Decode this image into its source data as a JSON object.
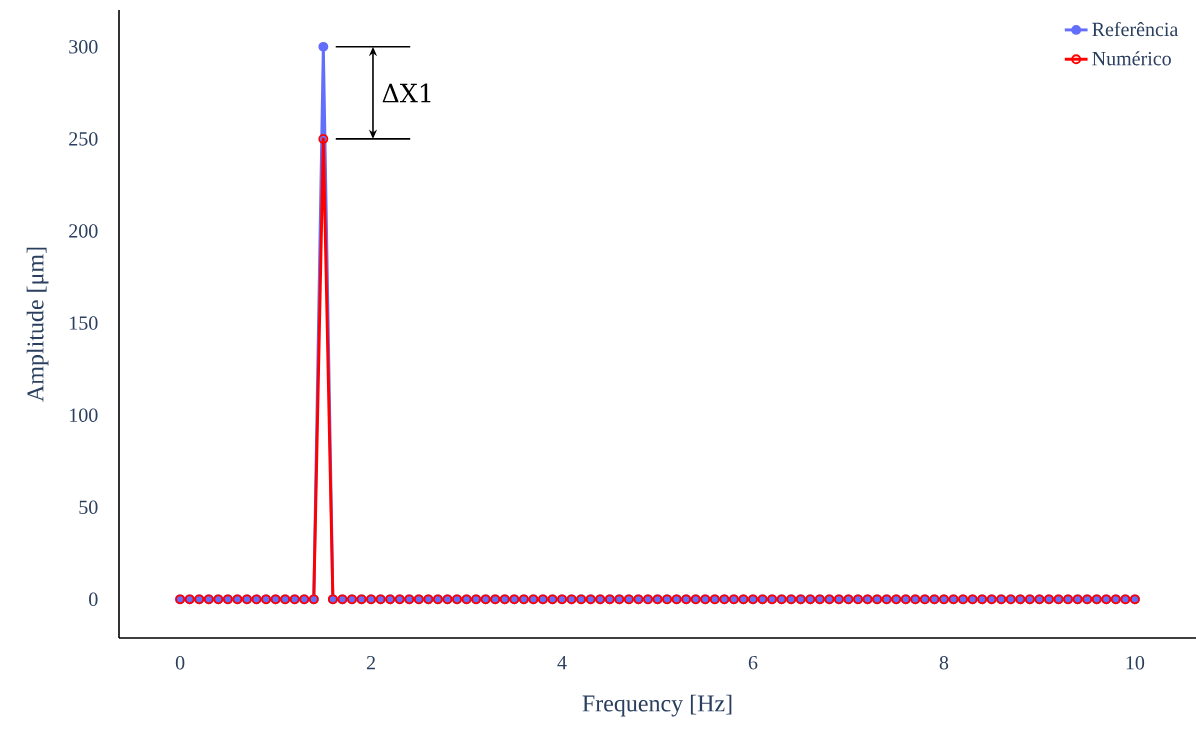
{
  "chart_data": {
    "type": "line",
    "xlabel": "Frequency [Hz]",
    "ylabel": "Amplitude [μm]",
    "x": [
      0,
      0.1,
      0.2,
      0.3,
      0.4,
      0.5,
      0.6,
      0.7,
      0.8,
      0.9,
      1,
      1.1,
      1.2,
      1.3,
      1.4,
      1.5,
      1.6,
      1.7,
      1.8,
      1.9,
      2,
      2.1,
      2.2,
      2.3,
      2.4,
      2.5,
      2.6,
      2.7,
      2.8,
      2.9,
      3,
      3.1,
      3.2,
      3.3,
      3.4,
      3.5,
      3.6,
      3.7,
      3.8,
      3.9,
      4,
      4.1,
      4.2,
      4.3,
      4.4,
      4.5,
      4.6,
      4.7,
      4.8,
      4.9,
      5,
      5.1,
      5.2,
      5.3,
      5.4,
      5.5,
      5.6,
      5.7,
      5.8,
      5.9,
      6,
      6.1,
      6.2,
      6.3,
      6.4,
      6.5,
      6.6,
      6.7,
      6.8,
      6.9,
      7,
      7.1,
      7.2,
      7.3,
      7.4,
      7.5,
      7.6,
      7.7,
      7.8,
      7.9,
      8,
      8.1,
      8.2,
      8.3,
      8.4,
      8.5,
      8.6,
      8.7,
      8.8,
      8.9,
      9,
      9.1,
      9.2,
      9.3,
      9.4,
      9.5,
      9.6,
      9.7,
      9.8,
      9.9,
      10
    ],
    "series": [
      {
        "name": "Referência",
        "color": "#636efa",
        "values": [
          0,
          0,
          0,
          0,
          0,
          0,
          0,
          0,
          0,
          0,
          0,
          0,
          0,
          0,
          0,
          300,
          0,
          0,
          0,
          0,
          0,
          0,
          0,
          0,
          0,
          0,
          0,
          0,
          0,
          0,
          0,
          0,
          0,
          0,
          0,
          0,
          0,
          0,
          0,
          0,
          0,
          0,
          0,
          0,
          0,
          0,
          0,
          0,
          0,
          0,
          0,
          0,
          0,
          0,
          0,
          0,
          0,
          0,
          0,
          0,
          0,
          0,
          0,
          0,
          0,
          0,
          0,
          0,
          0,
          0,
          0,
          0,
          0,
          0,
          0,
          0,
          0,
          0,
          0,
          0,
          0,
          0,
          0,
          0,
          0,
          0,
          0,
          0,
          0,
          0,
          0,
          0,
          0,
          0,
          0,
          0,
          0,
          0,
          0,
          0,
          0
        ]
      },
      {
        "name": "Numérico",
        "color": "#ff0000",
        "values": [
          0,
          0,
          0,
          0,
          0,
          0,
          0,
          0,
          0,
          0,
          0,
          0,
          0,
          0,
          0,
          250,
          0,
          0,
          0,
          0,
          0,
          0,
          0,
          0,
          0,
          0,
          0,
          0,
          0,
          0,
          0,
          0,
          0,
          0,
          0,
          0,
          0,
          0,
          0,
          0,
          0,
          0,
          0,
          0,
          0,
          0,
          0,
          0,
          0,
          0,
          0,
          0,
          0,
          0,
          0,
          0,
          0,
          0,
          0,
          0,
          0,
          0,
          0,
          0,
          0,
          0,
          0,
          0,
          0,
          0,
          0,
          0,
          0,
          0,
          0,
          0,
          0,
          0,
          0,
          0,
          0,
          0,
          0,
          0,
          0,
          0,
          0,
          0,
          0,
          0,
          0,
          0,
          0,
          0,
          0,
          0,
          0,
          0,
          0,
          0,
          0
        ]
      }
    ],
    "xlim": [
      -0.64,
      10.64
    ],
    "ylim": [
      -21,
      320
    ],
    "xticks": [
      0,
      2,
      4,
      6,
      8,
      10
    ],
    "yticks": [
      0,
      50,
      100,
      150,
      200,
      250,
      300
    ],
    "annotations": [
      "ΔX1"
    ],
    "grid": false,
    "legend": "top right",
    "marker": "circle"
  }
}
